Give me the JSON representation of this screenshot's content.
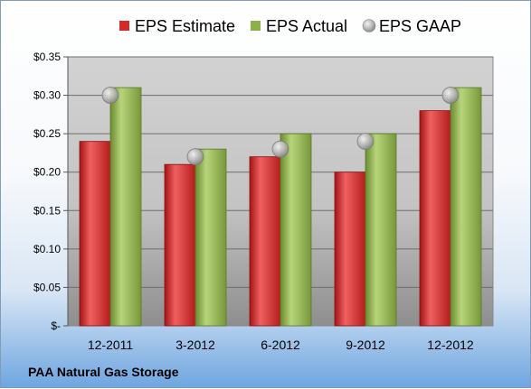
{
  "chart_data": {
    "type": "bar",
    "categories": [
      "12-2011",
      "3-2012",
      "6-2012",
      "9-2012",
      "12-2012"
    ],
    "series": [
      {
        "name": "EPS Estimate",
        "type": "bar",
        "color": "#d42a2a",
        "values": [
          0.24,
          0.21,
          0.22,
          0.2,
          0.28
        ]
      },
      {
        "name": "EPS Actual",
        "type": "bar",
        "color": "#8db04a",
        "values": [
          0.31,
          0.23,
          0.25,
          0.25,
          0.31
        ]
      },
      {
        "name": "EPS GAAP",
        "type": "marker",
        "color": "#a9a9a9",
        "values": [
          0.3,
          0.22,
          0.23,
          0.24,
          0.3
        ]
      }
    ],
    "y_ticks": [
      "$-",
      "$0.05",
      "$0.10",
      "$0.15",
      "$0.20",
      "$0.25",
      "$0.30",
      "$0.35"
    ],
    "ylim": [
      0,
      0.35
    ],
    "grid": true,
    "legend_position": "top",
    "company": "PAA Natural Gas Storage"
  }
}
